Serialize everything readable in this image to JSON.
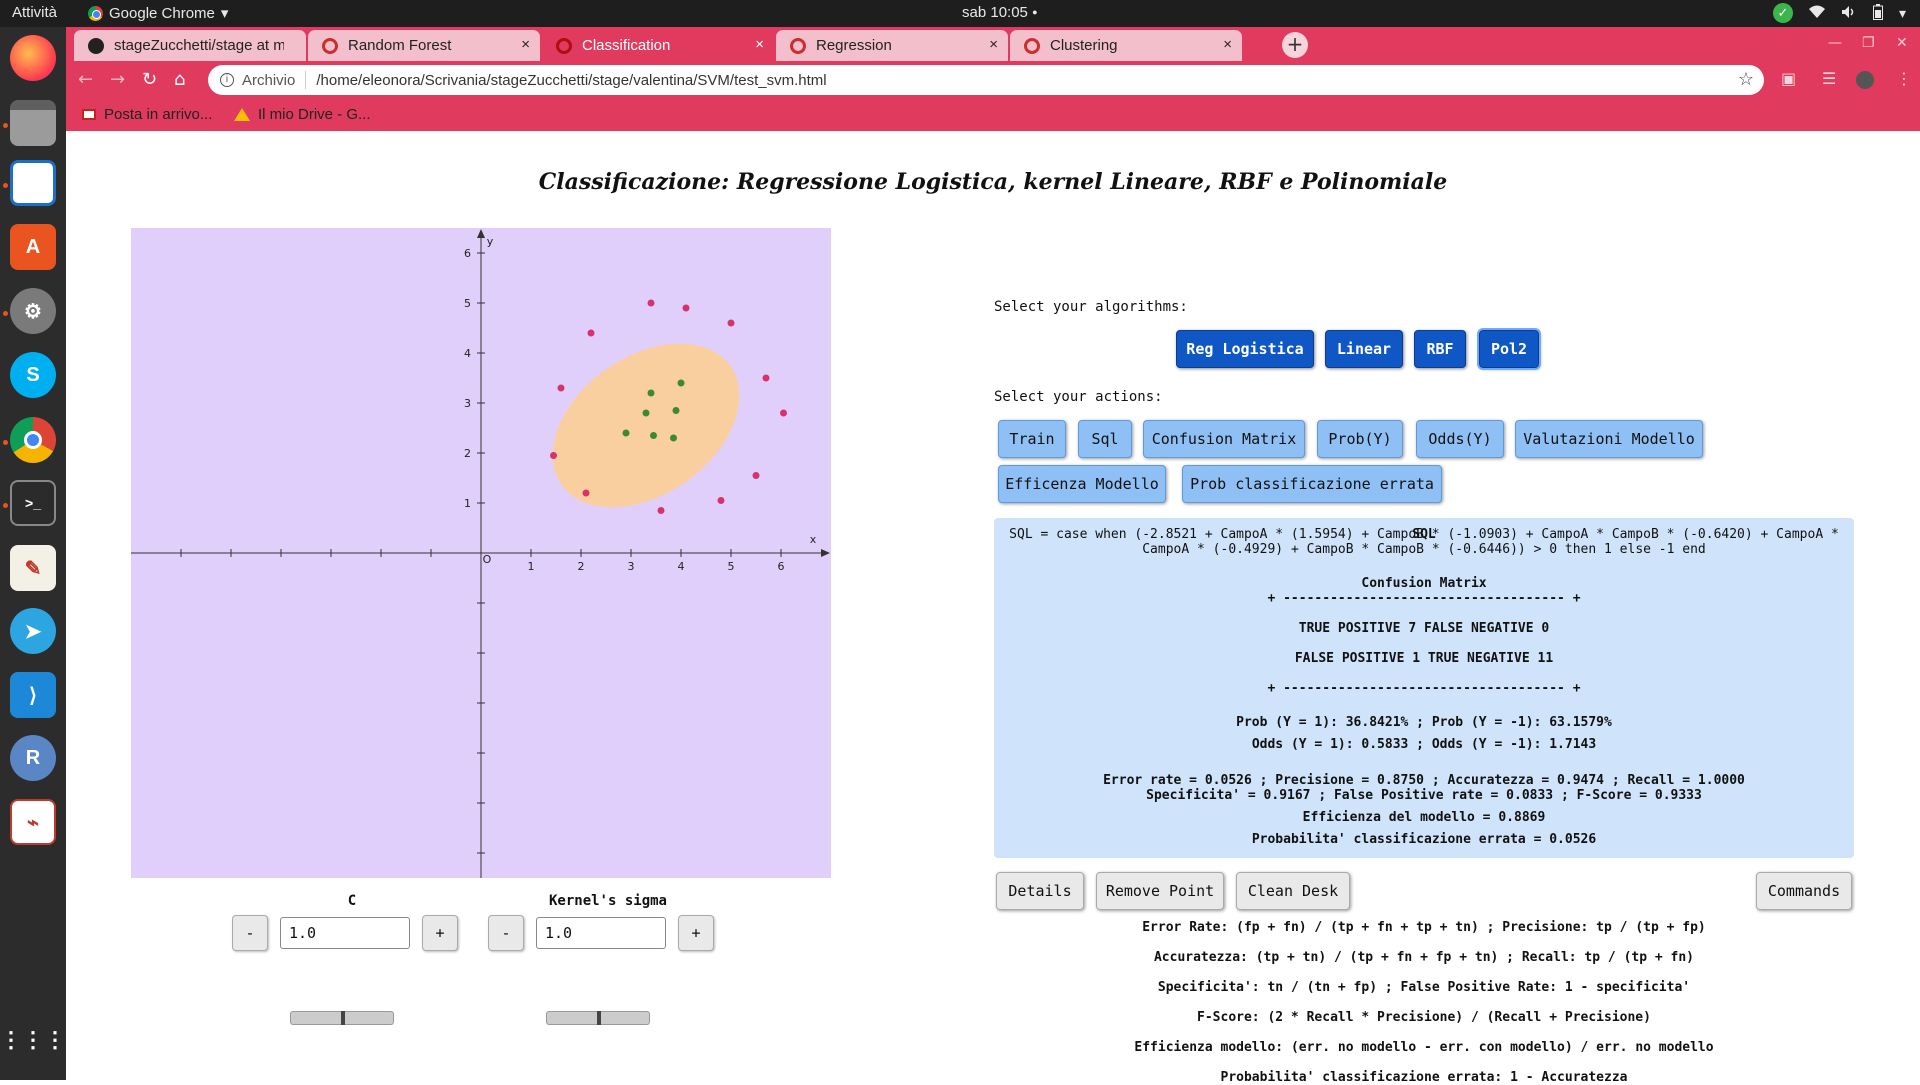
{
  "topbar": {
    "activities": "Attività",
    "app_name": "Google Chrome",
    "app_arrow": "▾",
    "clock": "sab 10:05",
    "clock_dot": "●",
    "tray_icons": [
      "check-icon",
      "wifi-icon",
      "volume-icon",
      "battery-icon",
      "power-menu-icon"
    ]
  },
  "dock": {
    "apps": [
      "firefox",
      "files",
      "writer",
      "software-center",
      "settings",
      "skype",
      "chrome",
      "terminal",
      "text-editor",
      "telegram",
      "vscode",
      "r",
      "evince",
      "show-apps"
    ]
  },
  "browser": {
    "tabs": [
      {
        "title": "stageZucchetti/stage at m",
        "icon": "github-icon",
        "active": false
      },
      {
        "title": "Random Forest",
        "icon": "page-icon",
        "active": false
      },
      {
        "title": "Classification",
        "icon": "page-icon",
        "active": true
      },
      {
        "title": "Regression",
        "icon": "page-icon",
        "active": false
      },
      {
        "title": "Clustering",
        "icon": "page-icon",
        "active": false
      }
    ],
    "tab_close": "×",
    "new_tab": "+",
    "address_scheme": "Archivio",
    "address_url": "/home/eleonora/Scrivania/stageZucchetti/stage/valentina/SVM/test_svm.html",
    "bookmarks": [
      "Posta in arrivo...",
      "Il mio Drive - G..."
    ]
  },
  "page": {
    "title": "Classificazione: Regressione Logistica, kernel Lineare, RBF e Polinomiale",
    "select_algorithms_label": "Select your algorithms:",
    "algorithms": [
      "Reg Logistica",
      "Linear",
      "RBF",
      "Pol2"
    ],
    "select_actions_label": "Select your actions:",
    "actions_row1": [
      "Train",
      "Sql",
      "Confusion Matrix",
      "Prob(Y)",
      "Odds(Y)",
      "Valutazioni Modello"
    ],
    "actions_row2": [
      "Efficenza Modello",
      "Prob classificazione errata"
    ],
    "params": {
      "c_label": "C",
      "c_value": "1.0",
      "sigma_label": "Kernel's sigma",
      "sigma_value": "1.0",
      "minus": "-",
      "plus": "+"
    },
    "results": {
      "sql_line1": "SQL = case when (-2.8521 + CampoA * (1.5954) + CampoB * (-1.0903) + CampoA * CampoB * (-0.6420) + CampoA *",
      "sql_line2": "CampoA * (-0.4929) + CampoB * CampoB * (-0.6446)) > 0 then 1 else -1 end",
      "cm_title": "Confusion Matrix",
      "cm_border": "+ ------------------------------------ +",
      "cm_row1": "TRUE POSITIVE 7 FALSE NEGATIVE 0",
      "cm_row2": "FALSE POSITIVE 1 TRUE NEGATIVE 11",
      "prob_line": "Prob (Y = 1): 36.8421% ; Prob (Y = -1): 63.1579%",
      "odds_line": "Odds (Y = 1): 0.5833 ; Odds (Y = -1): 1.7143",
      "metrics_line1": "Error rate = 0.0526 ; Precisione = 0.8750 ; Accuratezza = 0.9474 ; Recall = 1.0000",
      "metrics_line2": "Specificita' = 0.9167 ; False Positive rate = 0.0833 ; F-Score = 0.9333",
      "efficiency_line": "Efficienza del modello = 0.8869",
      "misclass_line": "Probabilita' classificazione errata = 0.0526"
    },
    "bottom_buttons": [
      "Details",
      "Remove Point",
      "Clean Desk",
      "Commands"
    ],
    "formulas": [
      "Error Rate: (fp + fn) / (tp + fn + tp + tn) ; Precisione: tp / (tp + fp)",
      "Accuratezza: (tp + tn) / (tp + fn + fp + tn) ; Recall: tp / (tp + fn)",
      "Specificita': tn / (tn + fp) ; False Positive Rate: 1 - specificita'",
      "F-Score: (2 * Recall * Precisione) / (Recall + Precisione)",
      "Efficienza modello: (err. no modello - err. con modello) / err. no modello",
      "Probabilita' classificazione errata: 1 - Accuratezza"
    ]
  },
  "chart_data": {
    "type": "scatter",
    "xlabel": "x",
    "ylabel": "y",
    "origin_label": "O",
    "x_ticks": [
      1,
      2,
      3,
      4,
      5,
      6
    ],
    "y_ticks": [
      1,
      2,
      3,
      4,
      5,
      6
    ],
    "xlim": [
      -7,
      7
    ],
    "ylim": [
      -6.5,
      6.5
    ],
    "colors": {
      "background": "#e0cffa",
      "region": "#f9cfa0",
      "positive": "#3a8a2e",
      "negative": "#d6336c",
      "axis": "#333333"
    },
    "region_ellipse": {
      "cx": 3.3,
      "cy": 2.55,
      "rx": 3.2,
      "ry": 1.2,
      "angle_deg": 35
    },
    "series": [
      {
        "label": "1",
        "color": "#3a8a2e",
        "points": [
          [
            3.4,
            3.2
          ],
          [
            4.0,
            3.4
          ],
          [
            3.3,
            2.8
          ],
          [
            3.9,
            2.85
          ],
          [
            2.9,
            2.4
          ],
          [
            3.45,
            2.35
          ],
          [
            3.85,
            2.3
          ]
        ]
      },
      {
        "label": "-1",
        "color": "#d6336c",
        "points": [
          [
            3.4,
            5.0
          ],
          [
            4.1,
            4.9
          ],
          [
            5.0,
            4.6
          ],
          [
            2.2,
            4.4
          ],
          [
            1.6,
            3.3
          ],
          [
            5.7,
            3.5
          ],
          [
            6.05,
            2.8
          ],
          [
            1.45,
            1.95
          ],
          [
            2.1,
            1.2
          ],
          [
            5.5,
            1.55
          ],
          [
            4.8,
            1.05
          ],
          [
            3.6,
            0.85
          ]
        ]
      }
    ]
  }
}
